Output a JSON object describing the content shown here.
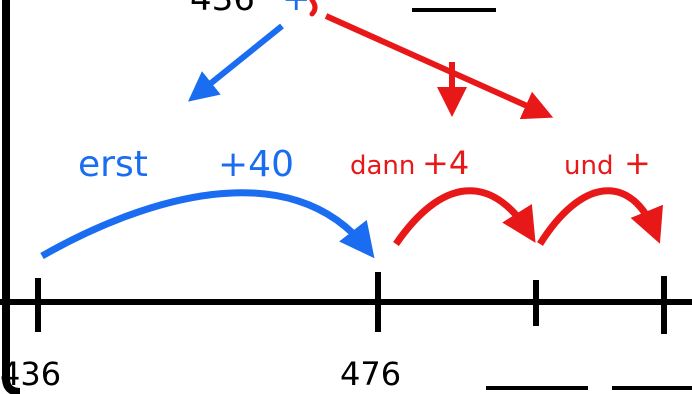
{
  "top": {
    "start_partial": "436",
    "operator_partial": "+",
    "answer_blank": ""
  },
  "steps": {
    "first_word": "erst",
    "first_amount": "+40",
    "then_word": "dann",
    "then_amount": "+4",
    "and_word": "und",
    "and_amount": "+"
  },
  "numberline": {
    "tick_labels": [
      "436",
      "476"
    ],
    "answer_blanks": [
      "",
      ""
    ]
  },
  "colors": {
    "first_step": "#1a6cf0",
    "second_step": "#e81818",
    "ink": "#000000"
  }
}
